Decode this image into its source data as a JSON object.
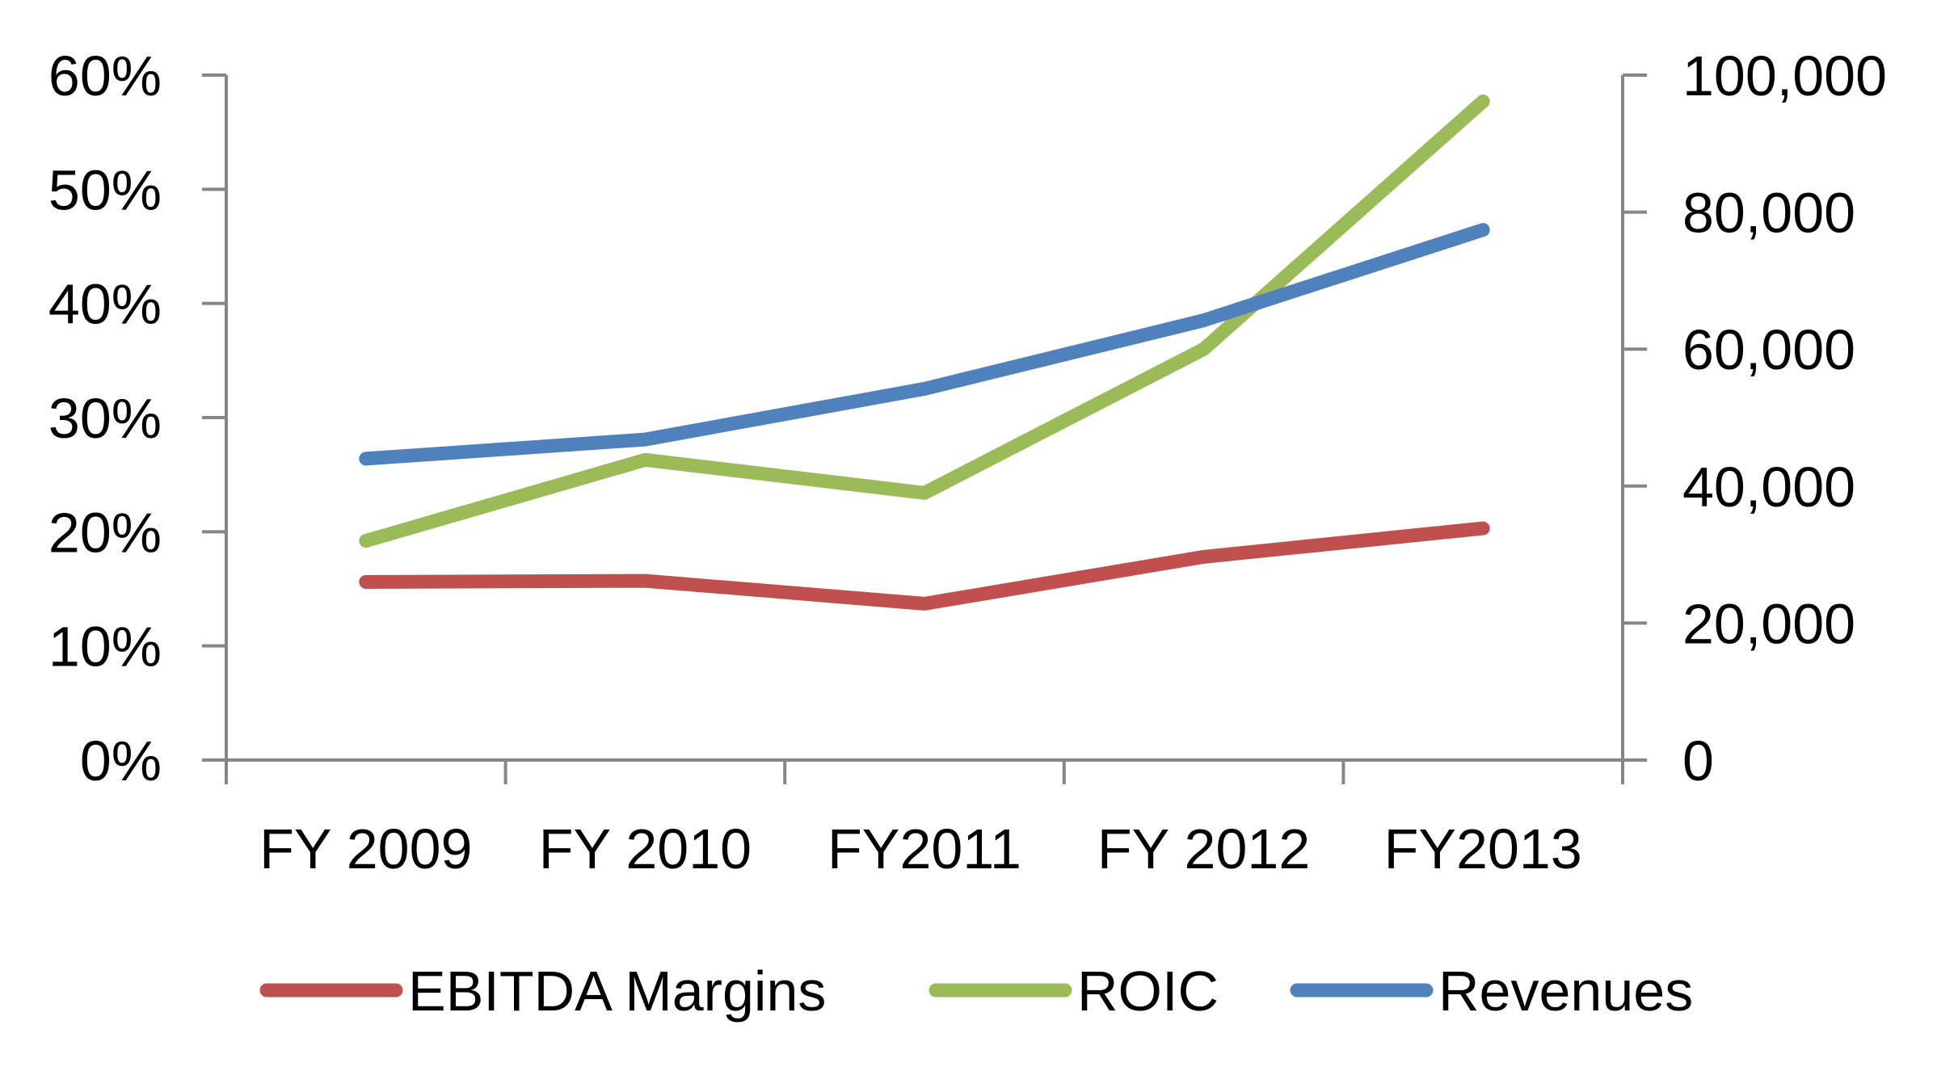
{
  "chart_data": {
    "type": "line",
    "categories": [
      "FY 2009",
      "FY 2010",
      "FY2011",
      "FY 2012",
      "FY2013"
    ],
    "left_axis": {
      "min": 0,
      "max": 60,
      "step": 10,
      "tick_labels": [
        "0%",
        "10%",
        "20%",
        "30%",
        "40%",
        "50%",
        "60%"
      ]
    },
    "right_axis": {
      "min": 0,
      "max": 100000,
      "step": 20000,
      "tick_labels": [
        "0",
        "20,000",
        "40,000",
        "60,000",
        "80,000",
        "100,000"
      ]
    },
    "series": [
      {
        "name": "EBITDA Margins",
        "axis": "left",
        "color": "#c0504d",
        "values": [
          15.6,
          15.7,
          13.7,
          17.8,
          20.3
        ]
      },
      {
        "name": "ROIC",
        "axis": "left",
        "color": "#9bbb59",
        "values": [
          19.2,
          26.3,
          23.4,
          36.0,
          57.7
        ]
      },
      {
        "name": "Revenues",
        "axis": "right",
        "color": "#4f81bd",
        "values": [
          44000,
          46800,
          54200,
          64200,
          77400
        ]
      }
    ],
    "grid": false,
    "legend": "bottom"
  }
}
